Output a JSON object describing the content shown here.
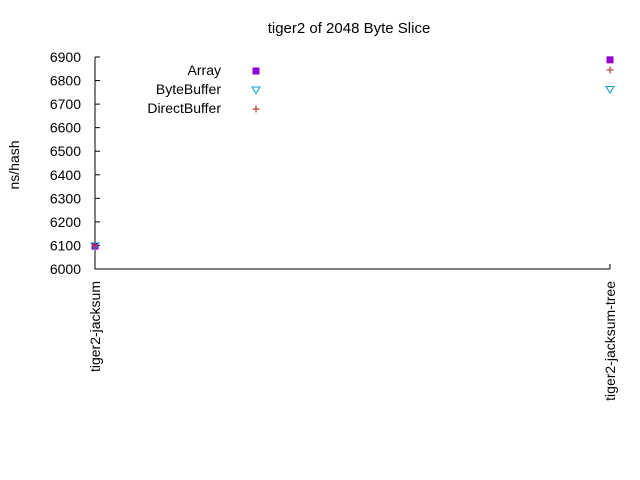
{
  "chart_data": {
    "type": "scatter",
    "title": "tiger2 of 2048 Byte Slice",
    "xlabel": "",
    "ylabel": "ns/hash",
    "categories": [
      "tiger2-jacksum",
      "tiger2-jacksum-tree"
    ],
    "ylim": [
      6000,
      6900
    ],
    "yticks": [
      6000,
      6100,
      6200,
      6300,
      6400,
      6500,
      6600,
      6700,
      6800,
      6900
    ],
    "grid": false,
    "legend": "top-left",
    "series": [
      {
        "name": "Array",
        "marker": "square",
        "color": "#9400d3",
        "values": [
          6097,
          6888
        ]
      },
      {
        "name": "ByteBuffer",
        "marker": "triangle-down",
        "color": "#009ed7",
        "values": [
          6098,
          6762
        ]
      },
      {
        "name": "DirectBuffer",
        "marker": "plus",
        "color": "#c0392b",
        "values": [
          6100,
          6845
        ]
      }
    ]
  }
}
